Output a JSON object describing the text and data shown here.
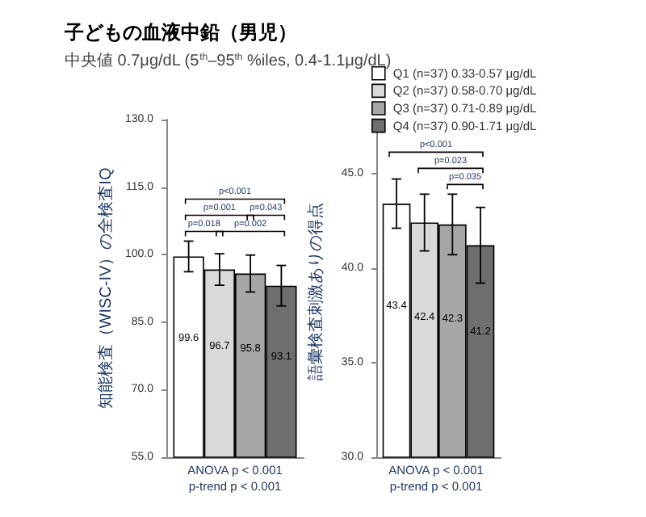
{
  "chart_data": [
    {
      "type": "bar",
      "title": "子どもの血液中鉛（男児）",
      "subtitle": "中央値 0.7μg/dL (5$^{th}$–95$^{th}$ %iles, 0.4-1.1μg/dL)",
      "ylabel": "知能検査（WISC-IV）の全検査IQ",
      "categories": [
        null
      ],
      "series": [
        {
          "color": "#ffffff",
          "values": [
            99.6
          ],
          "errors": [
            3.4
          ]
        },
        {
          "color": "#d9d9d9",
          "values": [
            96.7
          ],
          "errors": [
            3.5
          ]
        },
        {
          "color": "#a6a6a6",
          "values": [
            95.8
          ],
          "errors": [
            4.1
          ]
        },
        {
          "color": "#6e6e6e",
          "values": [
            93.1
          ],
          "errors": [
            4.5
          ]
        }
      ],
      "ylim": [
        55,
        130
      ],
      "yticks": [
        {
          "value": 55,
          "label": "55.0"
        },
        {
          "value": 70,
          "label": "70.0"
        },
        {
          "value": 85,
          "label": "85.0"
        },
        {
          "value": 100,
          "label": "100.0"
        },
        {
          "value": 115,
          "label": "115.0"
        },
        {
          "value": 130,
          "label": "130.0"
        }
      ],
      "data_labels": true,
      "annotations": [
        "p<0.001",
        "p=0.001",
        "p=0.043",
        "p=0.018",
        "p=0.002",
        "ANOVA p < 0.001",
        "p-trend p < 0.001"
      ]
    },
    {
      "type": "bar",
      "ylabel": "語彙検査刺激ありの得点",
      "categories": [
        null
      ],
      "series": [
        {
          "name": "Q1 (n=37) 0.33-0.57 μg/dL",
          "color": "#ffffff",
          "values": [
            43.4
          ],
          "errors": [
            1.3
          ]
        },
        {
          "name": "Q2 (n=37) 0.58-0.70 μg/dL",
          "color": "#d9d9d9",
          "values": [
            42.4
          ],
          "errors": [
            1.5
          ]
        },
        {
          "name": "Q3 (n=37) 0.71-0.89 μg/dL",
          "color": "#a6a6a6",
          "values": [
            42.3
          ],
          "errors": [
            1.6
          ]
        },
        {
          "name": "Q4 (n=37) 0.90-1.71 μg/dL",
          "color": "#6e6e6e",
          "values": [
            41.2
          ],
          "errors": [
            2.0
          ]
        }
      ],
      "ylim": [
        30,
        47.5
      ],
      "yticks": [
        {
          "value": 30,
          "label": "30.0"
        },
        {
          "value": 35,
          "label": "35.0"
        },
        {
          "value": 40,
          "label": "40.0"
        },
        {
          "value": 45,
          "label": "45.0"
        }
      ],
      "data_labels": true,
      "legend": "top",
      "annotations": [
        "p<0.001",
        "p=0.023",
        "p=0.035",
        "ANOVA p < 0.001",
        "p-trend p < 0.001"
      ]
    }
  ]
}
